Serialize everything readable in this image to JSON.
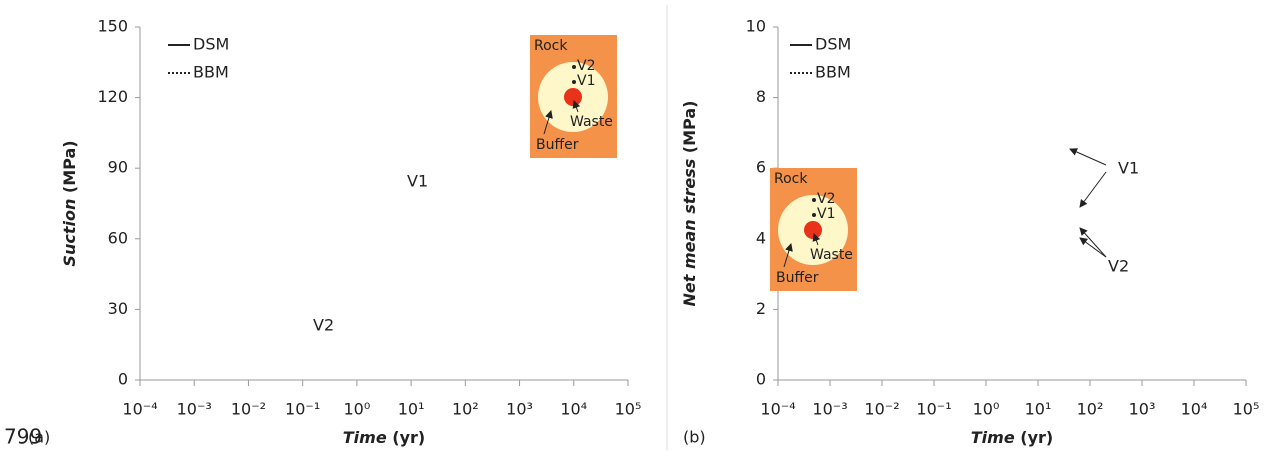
{
  "line_number": "799",
  "chart_data": [
    {
      "type": "line",
      "panel_label": "(a)",
      "xscale": "log",
      "xlabel": {
        "name": "Time",
        "unit": "(yr)"
      },
      "ylabel": {
        "name": "Suction",
        "unit": "(MPa)"
      },
      "xlim": [
        0.0001,
        100000
      ],
      "xticks": [
        {
          "value": 0.0001,
          "label": "10⁻⁴"
        },
        {
          "value": 0.001,
          "label": "10⁻³"
        },
        {
          "value": 0.01,
          "label": "10⁻²"
        },
        {
          "value": 0.1,
          "label": "10⁻¹"
        },
        {
          "value": 1,
          "label": "10⁰"
        },
        {
          "value": 10,
          "label": "10¹"
        },
        {
          "value": 100,
          "label": "10²"
        },
        {
          "value": 1000,
          "label": "10³"
        },
        {
          "value": 10000,
          "label": "10⁴"
        },
        {
          "value": 100000,
          "label": "10⁵"
        }
      ],
      "ylim": [
        0,
        150
      ],
      "yticks": [
        0,
        30,
        60,
        90,
        120,
        150
      ],
      "legend": [
        {
          "name": "DSM",
          "dash": "solid"
        },
        {
          "name": "BBM",
          "dash": "dotted"
        }
      ],
      "annotations": [
        "V1",
        "V2"
      ],
      "inset": {
        "rock": "Rock",
        "v2": "V2",
        "v1": "V1",
        "waste": "Waste",
        "buffer": "Buffer"
      }
    },
    {
      "type": "line",
      "panel_label": "(b)",
      "xscale": "log",
      "xlabel": {
        "name": "Time",
        "unit": "(yr)"
      },
      "ylabel": {
        "name": "Net mean stress",
        "unit": "(MPa)"
      },
      "xlim": [
        0.0001,
        100000
      ],
      "xticks": [
        {
          "value": 0.0001,
          "label": "10⁻⁴"
        },
        {
          "value": 0.001,
          "label": "10⁻³"
        },
        {
          "value": 0.01,
          "label": "10⁻²"
        },
        {
          "value": 0.1,
          "label": "10⁻¹"
        },
        {
          "value": 1,
          "label": "10⁰"
        },
        {
          "value": 10,
          "label": "10¹"
        },
        {
          "value": 100,
          "label": "10²"
        },
        {
          "value": 1000,
          "label": "10³"
        },
        {
          "value": 10000,
          "label": "10⁴"
        },
        {
          "value": 100000,
          "label": "10⁵"
        }
      ],
      "ylim": [
        0,
        10
      ],
      "yticks": [
        0,
        2,
        4,
        6,
        8,
        10
      ],
      "legend": [
        {
          "name": "DSM",
          "dash": "solid"
        },
        {
          "name": "BBM",
          "dash": "dotted"
        }
      ],
      "annotations": [
        "V1",
        "V2"
      ],
      "inset": {
        "rock": "Rock",
        "v2": "V2",
        "v1": "V1",
        "waste": "Waste",
        "buffer": "Buffer"
      }
    }
  ]
}
